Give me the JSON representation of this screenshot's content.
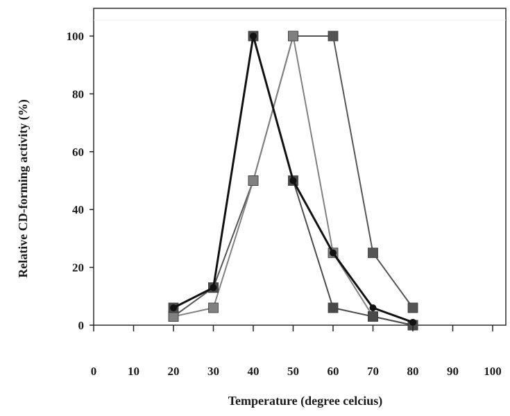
{
  "chart_data": {
    "type": "line",
    "title": "",
    "xlabel": "Temperature (degree celcius)",
    "ylabel": "Relative CD-forming activity (%)",
    "xlim": [
      0,
      100
    ],
    "ylim": [
      0,
      100
    ],
    "x_ticks": [
      "0",
      "10",
      "20",
      "30",
      "40",
      "50",
      "60",
      "70",
      "80",
      "90",
      "100"
    ],
    "y_ticks": [
      "0",
      "20",
      "40",
      "60",
      "80",
      "100"
    ],
    "grid": false,
    "legend": "none",
    "series": [
      {
        "marker": "square",
        "color": "#555555",
        "x": [
          20,
          30,
          40,
          50,
          60,
          70,
          80
        ],
        "y": [
          3,
          13,
          50,
          100,
          100,
          25,
          6
        ]
      },
      {
        "marker": "square",
        "color": "#808080",
        "x": [
          20,
          30,
          40,
          50,
          60,
          70,
          80
        ],
        "y": [
          3,
          6,
          50,
          100,
          25,
          3,
          0
        ]
      },
      {
        "marker": "square",
        "color": "#4a4a4a",
        "x": [
          20,
          30,
          40,
          50,
          60,
          70,
          80
        ],
        "y": [
          6,
          13,
          100,
          50,
          6,
          3,
          0
        ]
      },
      {
        "marker": "circle",
        "color": "#111111",
        "x": [
          20,
          30,
          40,
          50,
          60,
          70,
          80
        ],
        "y": [
          6,
          13,
          100,
          50,
          25,
          6,
          1
        ]
      }
    ]
  }
}
